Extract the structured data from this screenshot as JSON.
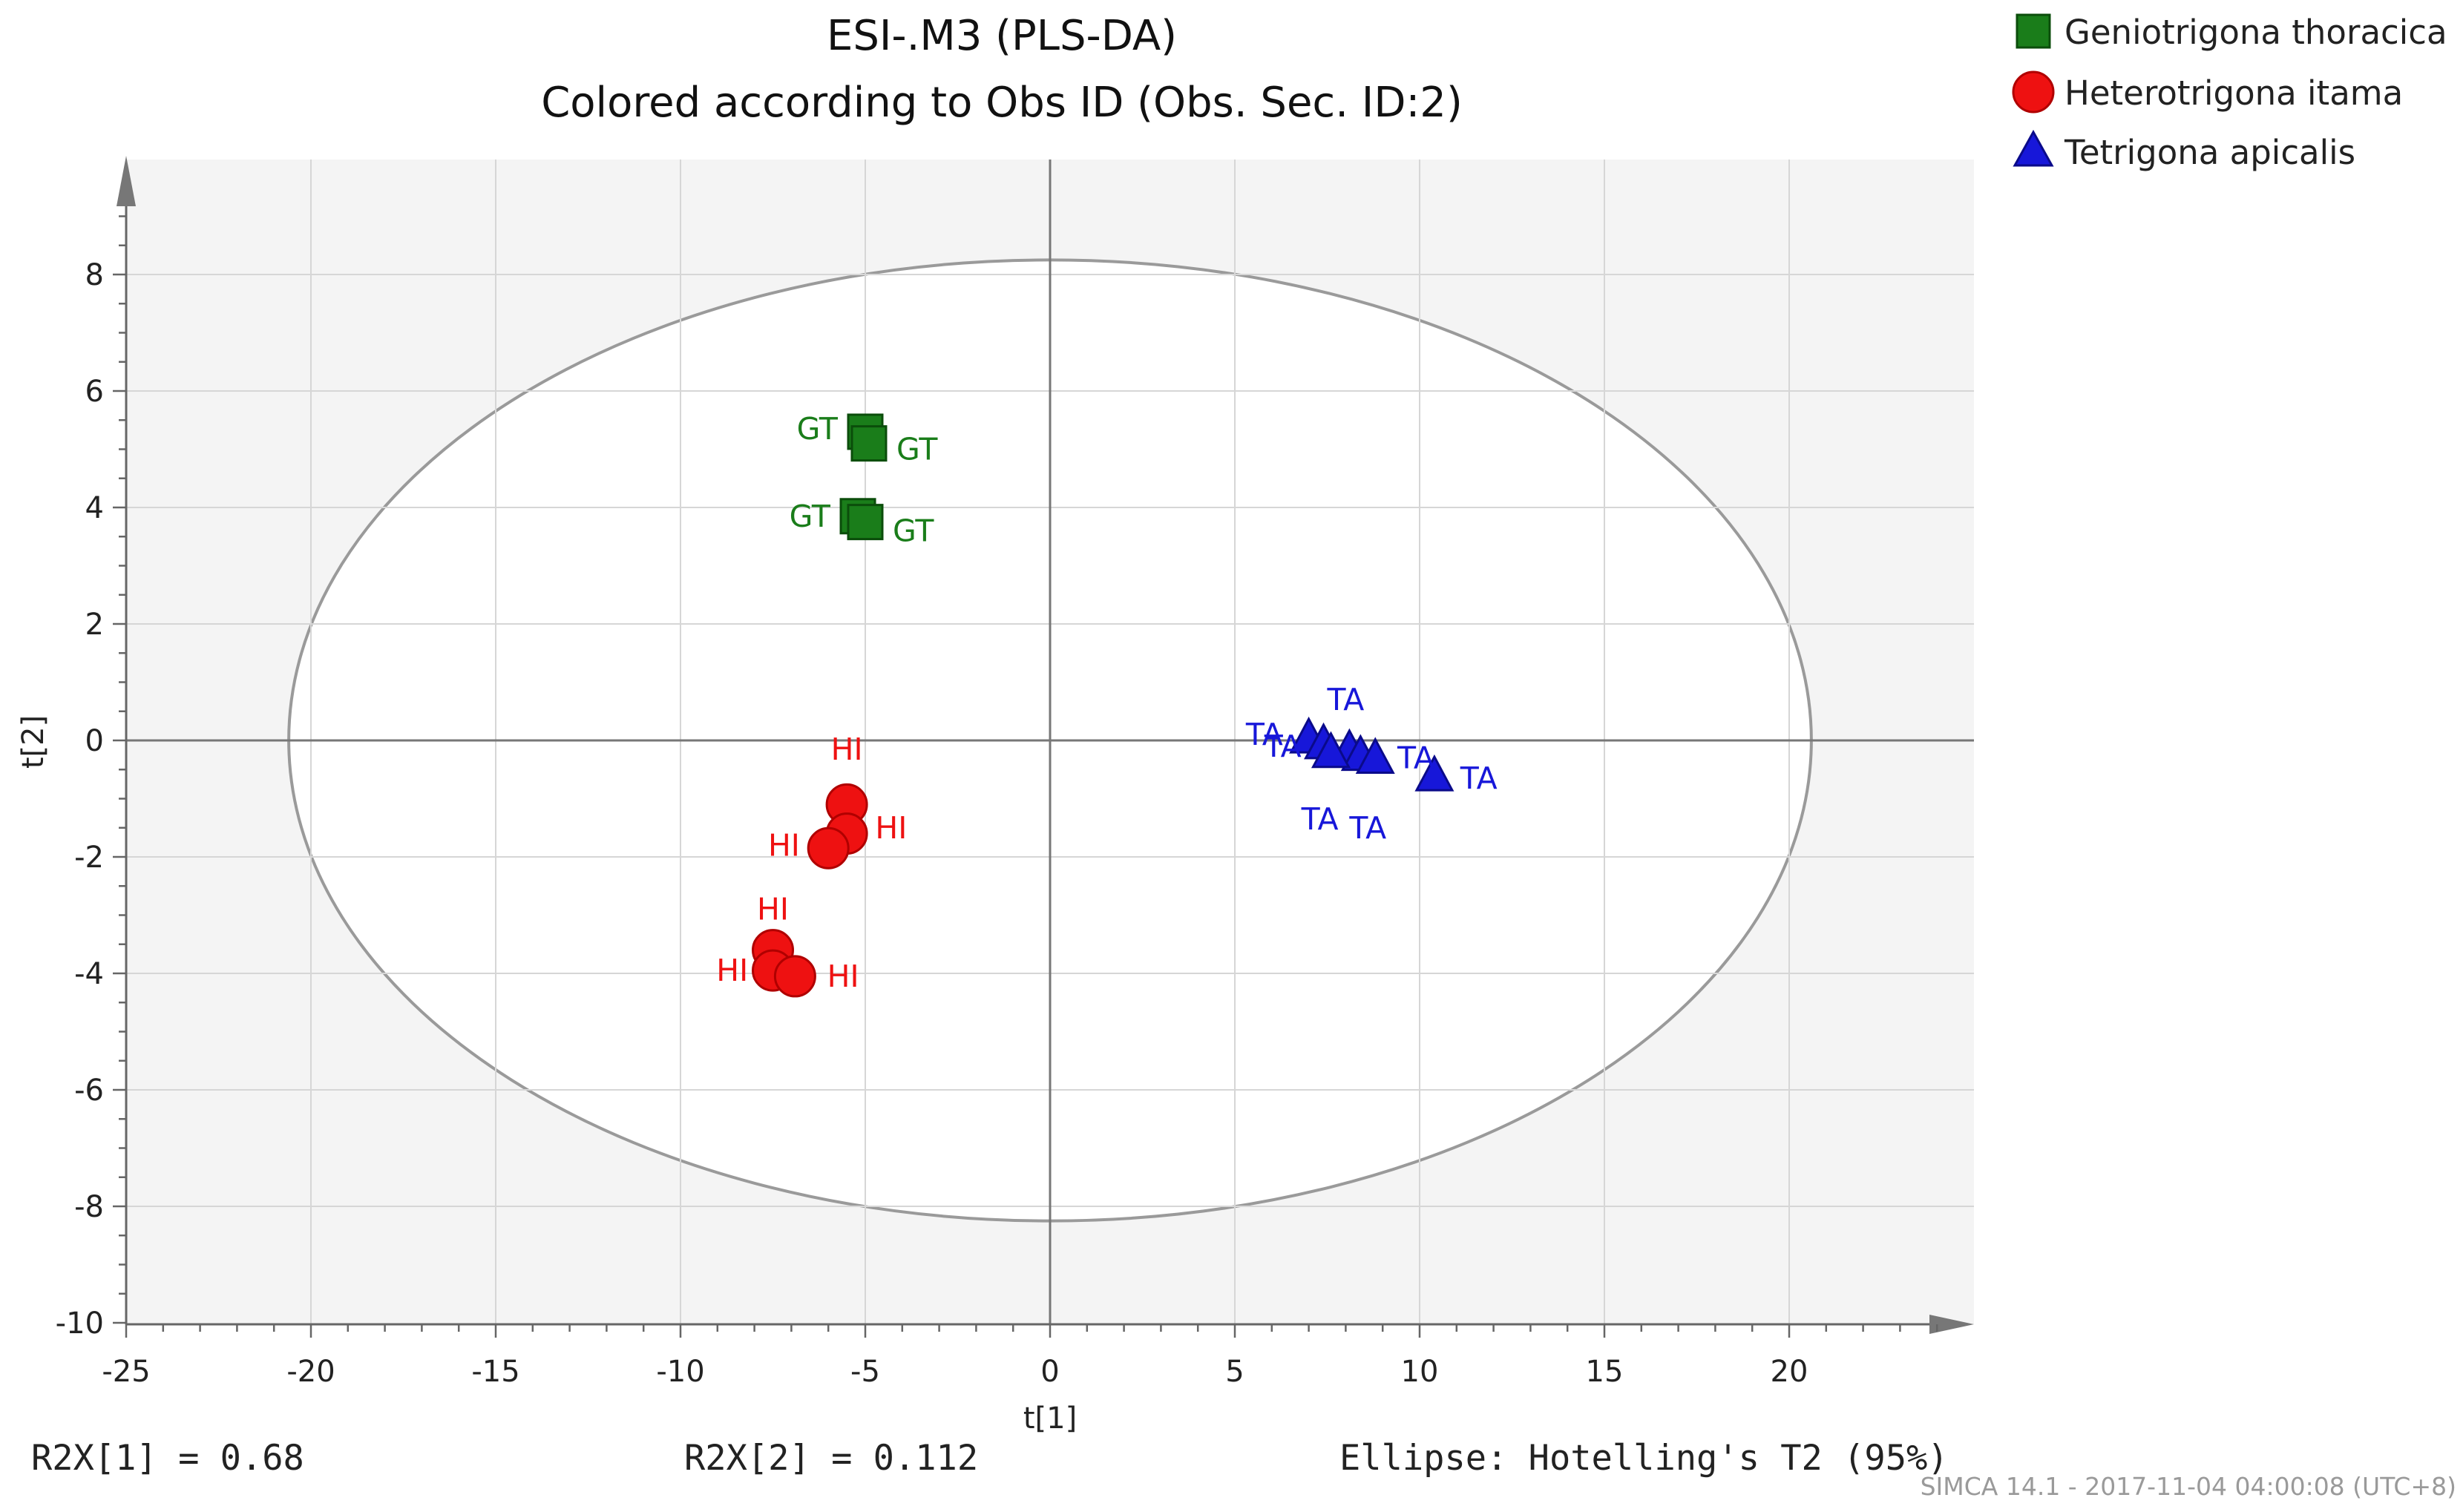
{
  "chart_data": {
    "type": "scatter",
    "title": "ESI-.M3 (PLS-DA)",
    "subtitle": "Colored according to Obs ID (Obs. Sec. ID:2)",
    "xlabel": "t[1]",
    "ylabel": "t[2]",
    "xlim": [
      -25,
      25
    ],
    "ylim": [
      -10,
      10
    ],
    "xticks": [
      -25,
      -20,
      -15,
      -10,
      -5,
      0,
      5,
      10,
      15,
      20
    ],
    "yticks": [
      8,
      6,
      4,
      2,
      0,
      -2,
      -4,
      -6,
      -8,
      -10
    ],
    "xtick_labels": [
      "-25",
      "-20",
      "-15",
      "-10",
      "-5",
      "0",
      "5",
      "10",
      "15",
      "20"
    ],
    "ytick_labels": [
      "8",
      "6",
      "4",
      "2",
      "0",
      "-2",
      "-4",
      "-6",
      "-8",
      "-10"
    ],
    "grid": true,
    "legend_position": "top-right",
    "ellipse": {
      "label": "Ellipse: Hotelling's T2 (95%)",
      "center": [
        0,
        0
      ],
      "rx": 20.6,
      "ry": 8.25
    },
    "series": [
      {
        "name": "Geniotrigona thoracica",
        "code": "GT",
        "marker": "square",
        "color": "#1a7d1a",
        "edge": "#0b4d0b",
        "points": [
          {
            "x": -5.0,
            "y": 5.3,
            "label": "GT"
          },
          {
            "x": -4.9,
            "y": 5.1,
            "label": "GT"
          },
          {
            "x": -5.2,
            "y": 3.85,
            "label": "GT"
          },
          {
            "x": -5.0,
            "y": 3.75,
            "label": "GT"
          }
        ]
      },
      {
        "name": "Heterotrigona itama",
        "code": "HI",
        "marker": "circle",
        "color": "#ee1111",
        "edge": "#b00000",
        "points": [
          {
            "x": -5.5,
            "y": -1.1,
            "label": "HI"
          },
          {
            "x": -5.5,
            "y": -1.6,
            "label": "HI"
          },
          {
            "x": -6.0,
            "y": -1.85,
            "label": "HI"
          },
          {
            "x": -7.5,
            "y": -3.6,
            "label": "HI"
          },
          {
            "x": -7.5,
            "y": -3.95,
            "label": "HI"
          },
          {
            "x": -6.9,
            "y": -4.05,
            "label": "HI"
          }
        ]
      },
      {
        "name": "Tetrigona apicalis",
        "code": "TA",
        "marker": "triangle",
        "color": "#1717d9",
        "edge": "#0a0a8a",
        "points": [
          {
            "x": 7.0,
            "y": 0.05,
            "label": "TA"
          },
          {
            "x": 7.4,
            "y": -0.05,
            "label": "TA"
          },
          {
            "x": 8.1,
            "y": -0.15,
            "label": "TA"
          },
          {
            "x": 8.4,
            "y": -0.25,
            "label": "TA"
          },
          {
            "x": 8.8,
            "y": -0.3,
            "label": "TA"
          },
          {
            "x": 10.4,
            "y": -0.6,
            "label": "TA"
          },
          {
            "x": 7.6,
            "y": -0.2,
            "label": "TA"
          }
        ]
      }
    ],
    "point_labels": [
      {
        "text": "GT",
        "series": 0,
        "x": -6.3,
        "y": 5.35,
        "anchor": "middle"
      },
      {
        "text": "GT",
        "series": 0,
        "x": -3.6,
        "y": 5.0,
        "anchor": "middle"
      },
      {
        "text": "GT",
        "series": 0,
        "x": -6.5,
        "y": 3.85,
        "anchor": "middle"
      },
      {
        "text": "GT",
        "series": 0,
        "x": -3.7,
        "y": 3.6,
        "anchor": "middle"
      },
      {
        "text": "HI",
        "series": 1,
        "x": -5.5,
        "y": -0.15,
        "anchor": "middle"
      },
      {
        "text": "HI",
        "series": 1,
        "x": -4.3,
        "y": -1.5,
        "anchor": "middle"
      },
      {
        "text": "HI",
        "series": 1,
        "x": -7.2,
        "y": -1.8,
        "anchor": "middle"
      },
      {
        "text": "HI",
        "series": 1,
        "x": -7.5,
        "y": -2.9,
        "anchor": "middle"
      },
      {
        "text": "HI",
        "series": 1,
        "x": -8.6,
        "y": -3.95,
        "anchor": "middle"
      },
      {
        "text": "HI",
        "series": 1,
        "x": -5.6,
        "y": -4.05,
        "anchor": "middle"
      },
      {
        "text": "TA",
        "series": 2,
        "x": 8.0,
        "y": 0.7,
        "anchor": "middle"
      },
      {
        "text": "TA",
        "series": 2,
        "x": 5.8,
        "y": 0.1,
        "anchor": "middle"
      },
      {
        "text": "TA",
        "series": 2,
        "x": 6.3,
        "y": -0.1,
        "anchor": "middle"
      },
      {
        "text": "TA",
        "series": 2,
        "x": 9.9,
        "y": -0.3,
        "anchor": "middle"
      },
      {
        "text": "TA",
        "series": 2,
        "x": 11.6,
        "y": -0.65,
        "anchor": "middle"
      },
      {
        "text": "TA",
        "series": 2,
        "x": 7.3,
        "y": -1.35,
        "anchor": "middle"
      },
      {
        "text": "TA",
        "series": 2,
        "x": 8.6,
        "y": -1.5,
        "anchor": "middle"
      }
    ]
  },
  "footer": {
    "r2x1": "R2X[1] = 0.68",
    "r2x2": "R2X[2] = 0.112",
    "ellipse_note": "Ellipse: Hotelling's T2 (95%)",
    "credit": "SIMCA 14.1 - 2017-11-04 04:00:08 (UTC+8)"
  }
}
